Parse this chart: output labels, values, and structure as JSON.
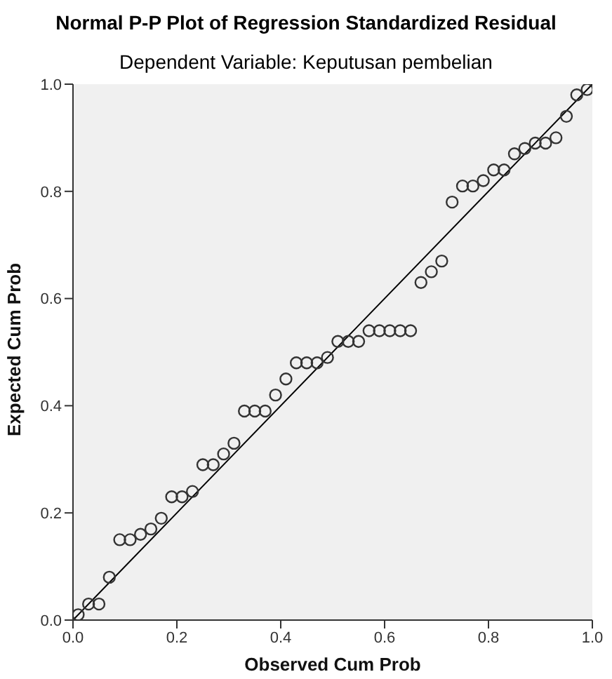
{
  "chart_data": {
    "type": "scatter",
    "title": "Normal P-P Plot of Regression Standardized Residual",
    "subtitle": "Dependent Variable: Keputusan pembelian",
    "xlabel": "Observed Cum Prob",
    "ylabel": "Expected Cum Prob",
    "xlim": [
      0,
      1
    ],
    "ylim": [
      0,
      1
    ],
    "xticks": [
      {
        "value": 0,
        "label": "0.0"
      },
      {
        "value": 0.2,
        "label": "0.2"
      },
      {
        "value": 0.4,
        "label": "0.4"
      },
      {
        "value": 0.6,
        "label": "0.6"
      },
      {
        "value": 0.8,
        "label": "0.8"
      },
      {
        "value": 1,
        "label": "1.0"
      }
    ],
    "yticks": [
      {
        "value": 0,
        "label": "0.0"
      },
      {
        "value": 0.2,
        "label": "0.2"
      },
      {
        "value": 0.4,
        "label": "0.4"
      },
      {
        "value": 0.6,
        "label": "0.6"
      },
      {
        "value": 0.8,
        "label": "0.8"
      },
      {
        "value": 1,
        "label": "1.0"
      }
    ],
    "grid": false,
    "legend": false,
    "series": [
      {
        "marker": "circle",
        "color": "#333333",
        "x": [
          0.01,
          0.03,
          0.05,
          0.07,
          0.09,
          0.11,
          0.13,
          0.15,
          0.17,
          0.19,
          0.21,
          0.23,
          0.25,
          0.27,
          0.29,
          0.31,
          0.33,
          0.35,
          0.37,
          0.39,
          0.41,
          0.43,
          0.45,
          0.47,
          0.49,
          0.51,
          0.53,
          0.55,
          0.57,
          0.59,
          0.61,
          0.63,
          0.65,
          0.67,
          0.69,
          0.71,
          0.73,
          0.75,
          0.77,
          0.79,
          0.81,
          0.83,
          0.85,
          0.87,
          0.89,
          0.91,
          0.93,
          0.95,
          0.97,
          0.99
        ],
        "values": [
          0.01,
          0.03,
          0.03,
          0.08,
          0.15,
          0.15,
          0.16,
          0.17,
          0.19,
          0.23,
          0.23,
          0.24,
          0.29,
          0.29,
          0.31,
          0.33,
          0.39,
          0.39,
          0.39,
          0.42,
          0.45,
          0.48,
          0.48,
          0.48,
          0.49,
          0.52,
          0.52,
          0.52,
          0.54,
          0.54,
          0.54,
          0.54,
          0.54,
          0.63,
          0.65,
          0.67,
          0.78,
          0.81,
          0.81,
          0.82,
          0.84,
          0.84,
          0.87,
          0.88,
          0.89,
          0.89,
          0.9,
          0.94,
          0.98,
          0.99
        ]
      },
      {
        "type": "line",
        "marker": "none",
        "color": "#000000",
        "x": [
          0,
          1
        ],
        "values": [
          0,
          1
        ]
      }
    ]
  }
}
